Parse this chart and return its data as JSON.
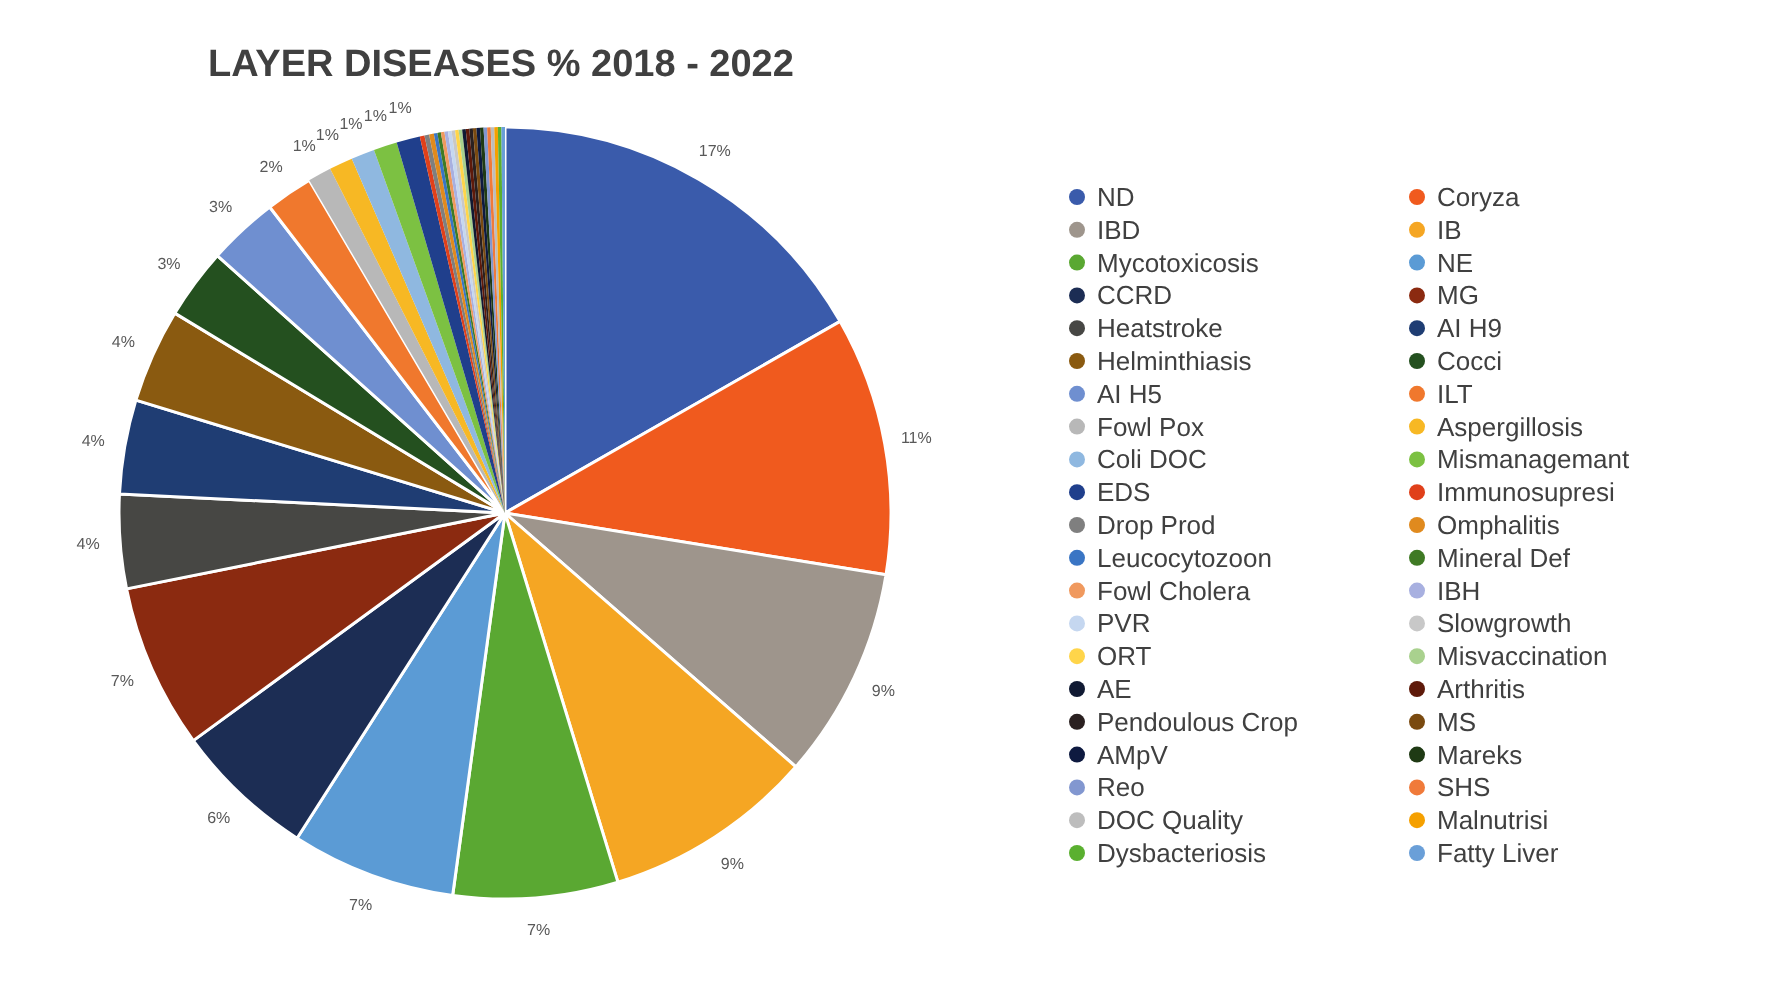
{
  "chart_data": {
    "type": "pie",
    "title": "LAYER DISEASES % 2018 - 2022",
    "categories": [
      "ND",
      "Coryza",
      "IBD",
      "IB",
      "Mycotoxicosis",
      "NE",
      "CCRD",
      "MG",
      "Heatstroke",
      "AI H9",
      "Helminthiasis",
      "Cocci",
      "AI H5",
      "ILT",
      "Fowl Pox",
      "Aspergillosis",
      "Coli DOC",
      "Mismanagemant",
      "EDS",
      "Immunosupresi",
      "Drop Prod",
      "Omphalitis",
      "Leucocytozoon",
      "Mineral Def",
      "Fowl Cholera",
      "IBH",
      "PVR",
      "Slowgrowth",
      "ORT",
      "Misvaccination",
      "AE",
      "Arthritis",
      "Pendoulous Crop",
      "MS",
      "AMpV",
      "Mareks",
      "Reo",
      "SHS",
      "DOC Quality",
      "Malnutrisi",
      "Dysbacteriosis",
      "Fatty Liver"
    ],
    "values": [
      17,
      11,
      9,
      9,
      7,
      7,
      6,
      7,
      4,
      4,
      4,
      3,
      3,
      2,
      1,
      1,
      1,
      1,
      1,
      0.2,
      0.2,
      0.2,
      0.15,
      0.15,
      0.15,
      0.15,
      0.15,
      0.15,
      0.15,
      0.15,
      0.15,
      0.15,
      0.15,
      0.15,
      0.15,
      0.15,
      0.15,
      0.15,
      0.15,
      0.15,
      0.15,
      0.15
    ],
    "value_labels": [
      "17%",
      "11%",
      "9%",
      "9%",
      "7%",
      "7%",
      "6%",
      "7%",
      "4%",
      "4%",
      "4%",
      "3%",
      "3%",
      "2%",
      "1%",
      "1%",
      "1%",
      "1%",
      "1%",
      null,
      null,
      null,
      null,
      null,
      null,
      null,
      null,
      null,
      null,
      null,
      null,
      null,
      null,
      null,
      null,
      null,
      null,
      null,
      null,
      null,
      null,
      null
    ],
    "colors": [
      "#3a5bab",
      "#f05a1e",
      "#9e958c",
      "#f5a623",
      "#5aa832",
      "#5b9bd5",
      "#1c2d54",
      "#8b2a10",
      "#474744",
      "#1f3d73",
      "#8a5a10",
      "#24501f",
      "#6f8fd0",
      "#f0782d",
      "#b8b8b8",
      "#f7b824",
      "#8fb8e0",
      "#7cc142",
      "#203f8c",
      "#e0401a",
      "#7f7f7f",
      "#e08a1e",
      "#3a75c4",
      "#3f7a24",
      "#f0995e",
      "#a8b0e0",
      "#c5d7f0",
      "#c8c8c8",
      "#ffd54a",
      "#a9d18e",
      "#101a33",
      "#5e1a0a",
      "#2a2020",
      "#7a4a10",
      "#0e1a40",
      "#1f3a14",
      "#8297d0",
      "#f07a3a",
      "#bdbdbd",
      "#f5a000",
      "#5ab030",
      "#6a9fd8"
    ],
    "legend": "right"
  }
}
